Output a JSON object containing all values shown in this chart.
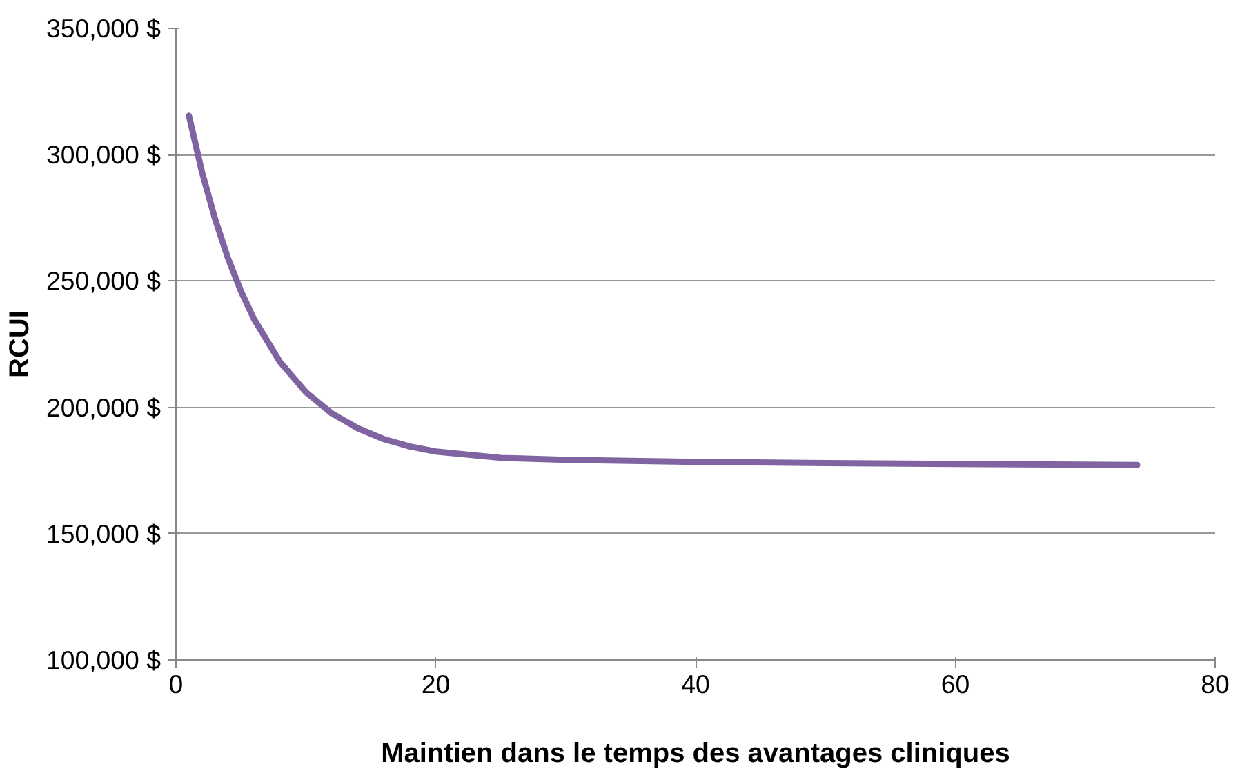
{
  "chart_data": {
    "type": "line",
    "xlabel": "Maintien dans le temps des avantages cliniques",
    "ylabel": "RCUI",
    "x": [
      1,
      2,
      3,
      4,
      5,
      6,
      8,
      10,
      12,
      14,
      16,
      18,
      20,
      25,
      30,
      40,
      50,
      60,
      74
    ],
    "series": [
      {
        "color": "#8064a2",
        "values": [
          315400,
          293200,
          274700,
          259100,
          246000,
          235000,
          218000,
          206000,
          197600,
          191700,
          187400,
          184500,
          182500,
          180000,
          179200,
          178400,
          177900,
          177600,
          177200
        ]
      }
    ],
    "xlim": [
      0,
      80
    ],
    "xticks": [
      0,
      20,
      40,
      60,
      80
    ],
    "ylim": [
      100000,
      350000
    ],
    "yticks": [
      {
        "value": 100000,
        "label": "100,000 $"
      },
      {
        "value": 150000,
        "label": "150,000 $"
      },
      {
        "value": 200000,
        "label": "200,000 $"
      },
      {
        "value": 250000,
        "label": "250,000 $"
      },
      {
        "value": 300000,
        "label": "300,000 $"
      },
      {
        "value": 350000,
        "label": "350,000 $"
      }
    ],
    "grid": "y",
    "marker": "none",
    "line_style": "solid"
  }
}
